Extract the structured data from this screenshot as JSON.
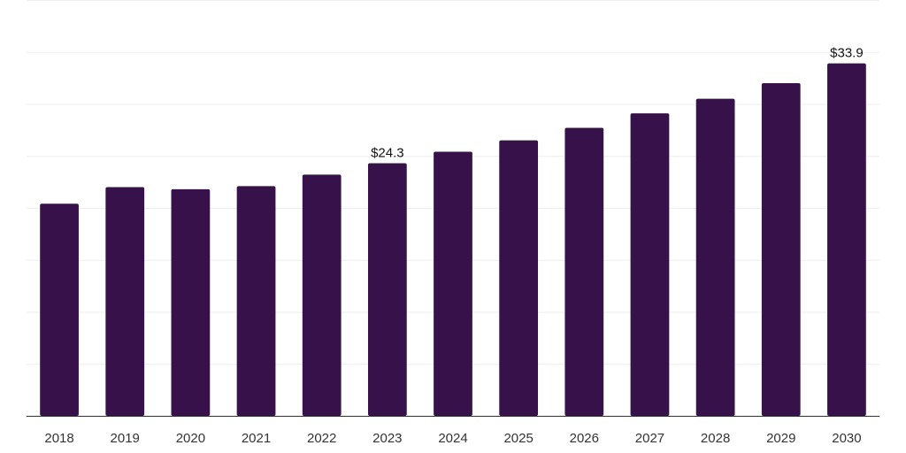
{
  "chart_data": {
    "type": "bar",
    "title": "",
    "xlabel": "",
    "ylabel": "",
    "categories": [
      "2018",
      "2019",
      "2020",
      "2021",
      "2022",
      "2023",
      "2024",
      "2025",
      "2026",
      "2027",
      "2028",
      "2029",
      "2030"
    ],
    "values": [
      20.4,
      22.0,
      21.8,
      22.1,
      23.2,
      24.3,
      25.4,
      26.5,
      27.7,
      29.1,
      30.5,
      32.0,
      33.9
    ],
    "data_labels": {
      "5": "$24.3",
      "12": "$33.9"
    },
    "ylim": [
      0,
      40
    ],
    "grid": true,
    "gridline_count": 8,
    "legend": "none",
    "colors": {
      "bar": "#37124a",
      "axis": "#333333",
      "grid": "#eeeeee",
      "text": "#333333"
    }
  }
}
